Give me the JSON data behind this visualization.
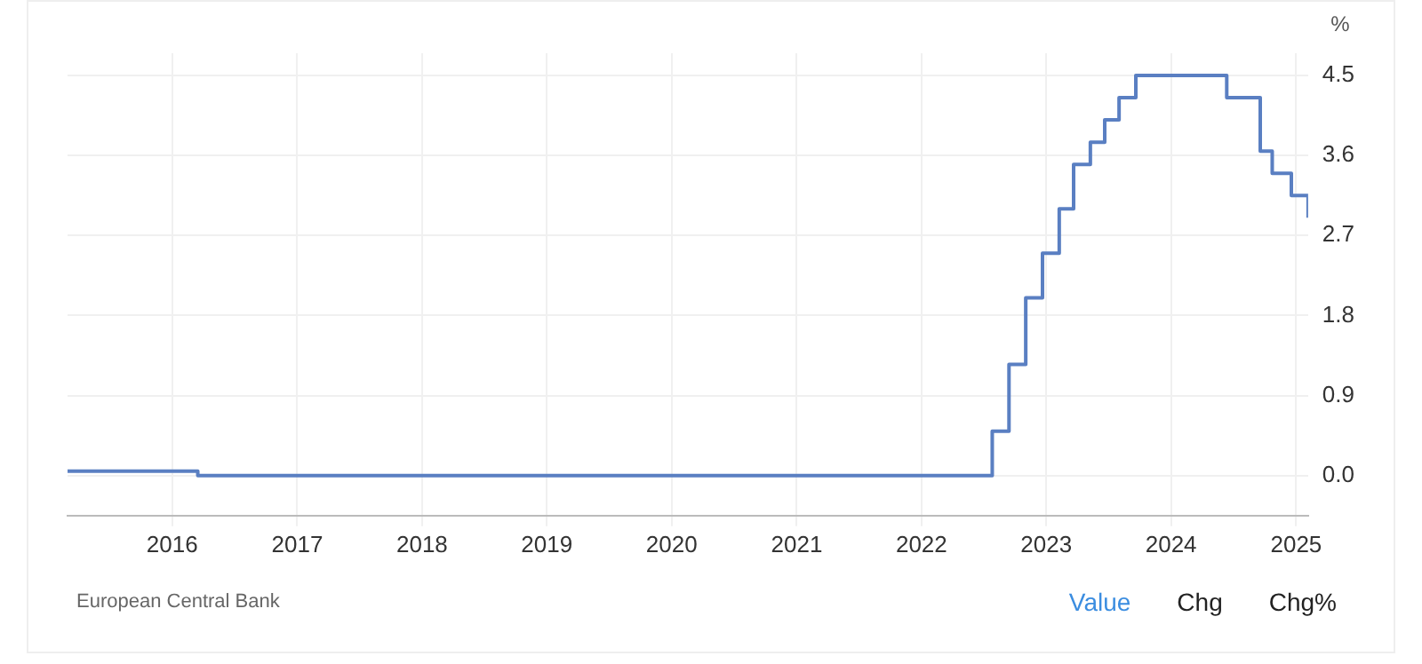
{
  "chart_data": {
    "type": "step",
    "ylabel": "%",
    "x": [
      "2015-03-01",
      "2016-03-16",
      "2022-07-27",
      "2022-09-14",
      "2022-11-02",
      "2022-12-21",
      "2023-02-08",
      "2023-03-22",
      "2023-05-10",
      "2023-06-21",
      "2023-08-02",
      "2023-09-20",
      "2024-06-12",
      "2024-09-18",
      "2024-10-23",
      "2024-12-18",
      "2025-02-05"
    ],
    "series": [
      {
        "color": "#5a7fc2",
        "values": [
          0.05,
          0.0,
          0.5,
          1.25,
          2.0,
          2.5,
          3.0,
          3.5,
          3.75,
          4.0,
          4.25,
          4.5,
          4.25,
          3.65,
          3.4,
          3.15,
          2.9
        ]
      }
    ],
    "xlim": [
      "2015-03-01",
      "2025-02-05"
    ],
    "xticks": [
      "2016",
      "2017",
      "2018",
      "2019",
      "2020",
      "2021",
      "2022",
      "2023",
      "2024",
      "2025"
    ],
    "ylim": [
      -0.45,
      4.75
    ],
    "yticks": [
      {
        "value": 0,
        "label": "0.0"
      },
      0.9,
      1.8,
      2.7,
      3.6,
      4.5
    ],
    "grid": true,
    "legend": false,
    "annotations": [
      "European Central Bank",
      "Value",
      "Chg",
      "Chg%"
    ]
  }
}
